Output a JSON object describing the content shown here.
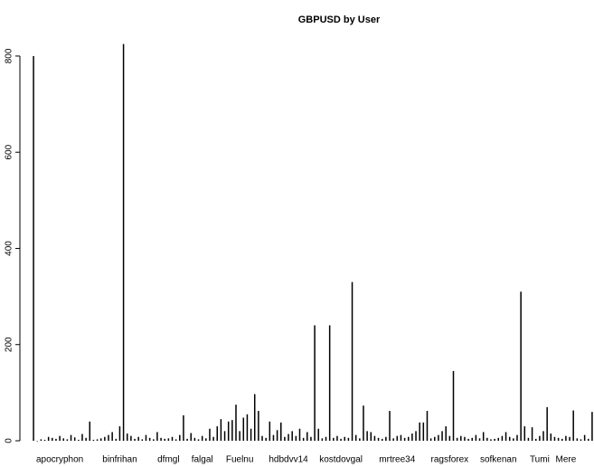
{
  "chart_data": {
    "type": "bar",
    "title": "GBPUSD by User",
    "color": "#000000",
    "categories": [
      null,
      null,
      null,
      null,
      null,
      null,
      null,
      "apocryphon",
      null,
      null,
      null,
      null,
      null,
      null,
      null,
      null,
      null,
      null,
      null,
      null,
      null,
      null,
      null,
      "binfrihan",
      null,
      null,
      null,
      null,
      null,
      null,
      null,
      null,
      null,
      null,
      null,
      null,
      "dfmgl",
      null,
      null,
      null,
      null,
      null,
      null,
      null,
      null,
      "falgal",
      null,
      null,
      null,
      null,
      null,
      null,
      null,
      null,
      null,
      "Fuelnu",
      null,
      null,
      null,
      null,
      null,
      null,
      null,
      null,
      null,
      null,
      null,
      null,
      "hdbdvv14",
      null,
      null,
      null,
      null,
      null,
      null,
      null,
      null,
      null,
      null,
      null,
      null,
      null,
      "kostdovgal",
      null,
      null,
      null,
      null,
      null,
      null,
      null,
      null,
      null,
      null,
      null,
      null,
      null,
      null,
      "mrtree34",
      null,
      null,
      null,
      null,
      null,
      null,
      null,
      null,
      null,
      null,
      null,
      null,
      null,
      "ragsforex",
      null,
      null,
      null,
      null,
      null,
      null,
      null,
      null,
      null,
      null,
      null,
      null,
      "sofkenan",
      null,
      null,
      null,
      null,
      null,
      null,
      null,
      null,
      null,
      null,
      "Tumi",
      null,
      null,
      null,
      null,
      null,
      null,
      "Mere",
      null,
      null,
      null,
      null,
      null,
      null,
      null
    ],
    "values": [
      800,
      0,
      3,
      2,
      8,
      6,
      4,
      10,
      5,
      3,
      12,
      7,
      2,
      14,
      6,
      40,
      2,
      3,
      5,
      8,
      12,
      18,
      4,
      30,
      825,
      15,
      10,
      4,
      8,
      3,
      12,
      6,
      3,
      18,
      6,
      4,
      5,
      8,
      3,
      12,
      53,
      4,
      16,
      6,
      3,
      10,
      5,
      25,
      8,
      30,
      45,
      20,
      40,
      43,
      75,
      20,
      48,
      55,
      25,
      97,
      62,
      10,
      6,
      40,
      12,
      22,
      38,
      8,
      14,
      20,
      10,
      25,
      6,
      18,
      8,
      240,
      25,
      5,
      8,
      240,
      6,
      10,
      4,
      8,
      6,
      330,
      12,
      5,
      73,
      20,
      18,
      10,
      6,
      4,
      8,
      62,
      5,
      10,
      12,
      6,
      8,
      15,
      20,
      38,
      38,
      62,
      5,
      8,
      12,
      20,
      30,
      10,
      145,
      6,
      10,
      8,
      4,
      6,
      12,
      5,
      18,
      6,
      3,
      4,
      6,
      10,
      18,
      8,
      5,
      12,
      310,
      30,
      6,
      28,
      4,
      10,
      20,
      70,
      15,
      8,
      6,
      4,
      10,
      8,
      63,
      5,
      3,
      12,
      4,
      60
    ],
    "ylim": [
      0,
      830
    ],
    "yticks": [
      0,
      200,
      400,
      600,
      800
    ]
  }
}
